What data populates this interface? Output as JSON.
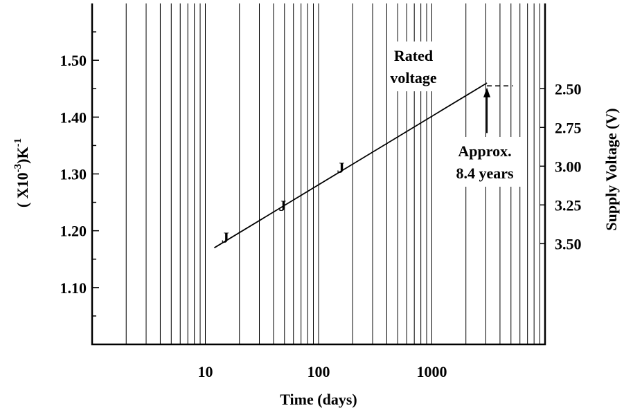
{
  "chart_data": {
    "type": "line",
    "xlabel": "Time (days)",
    "ylabel": [
      "( X10",
      "-3",
      ")K",
      "-1"
    ],
    "y2label": "Supply Voltage (V)",
    "log_x": true,
    "grid": true,
    "xlim": [
      1,
      10000
    ],
    "xticks": [
      10,
      100,
      1000
    ],
    "ylim": [
      1.0,
      1.6
    ],
    "yticks": [
      {
        "value": 1.1,
        "label": "1.10"
      },
      {
        "value": 1.2,
        "label": "1.20"
      },
      {
        "value": 1.3,
        "label": "1.30"
      },
      {
        "value": 1.4,
        "label": "1.40"
      },
      {
        "value": 1.5,
        "label": "1.50"
      }
    ],
    "y2lim": [
      4.15,
      1.95
    ],
    "y2ticks": [
      {
        "value": 2.5,
        "label": "2.50"
      },
      {
        "value": 2.75,
        "label": "2.75"
      },
      {
        "value": 3.0,
        "label": "3.00"
      },
      {
        "value": 3.25,
        "label": "3.25"
      },
      {
        "value": 3.5,
        "label": "3.50"
      }
    ],
    "series": [
      {
        "name": null,
        "color": "#000000",
        "x": [
          12,
          3066
        ],
        "values": [
          1.17,
          1.46
        ]
      },
      {
        "name": null,
        "color": "#000000",
        "marker": "J",
        "x": [
          15,
          48,
          157
        ],
        "values": [
          1.19,
          1.246,
          1.313
        ]
      }
    ],
    "reference_line": {
      "x": [
        3066,
        5200
      ],
      "y": 1.455
    },
    "arrow": {
      "x": 3066,
      "y": [
        1.372,
        1.452
      ]
    },
    "annotations": [
      {
        "text": [
          "Rated",
          "voltage"
        ]
      },
      {
        "text": [
          "Approx.",
          "8.4 years"
        ]
      }
    ]
  }
}
